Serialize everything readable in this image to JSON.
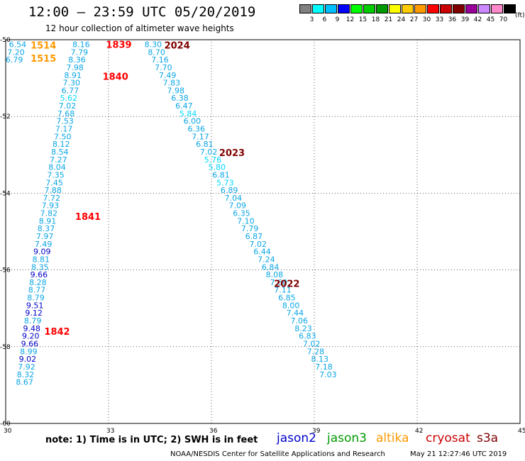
{
  "header": {
    "title": "12:00 – 23:59 UTC 05/20/2019",
    "subtitle": "12 hour collection of altimeter wave heights"
  },
  "legend": {
    "unit": "(ft)",
    "bins": [
      {
        "label": "3",
        "color": "#808080"
      },
      {
        "label": "6",
        "color": "#00ffff"
      },
      {
        "label": "9",
        "color": "#00bfff"
      },
      {
        "label": "12",
        "color": "#0000ff"
      },
      {
        "label": "15",
        "color": "#00ff00"
      },
      {
        "label": "18",
        "color": "#00cc00"
      },
      {
        "label": "21",
        "color": "#009900"
      },
      {
        "label": "24",
        "color": "#ffff00"
      },
      {
        "label": "27",
        "color": "#ffcc00"
      },
      {
        "label": "30",
        "color": "#ff9900"
      },
      {
        "label": "33",
        "color": "#ff0000"
      },
      {
        "label": "36",
        "color": "#cc0000"
      },
      {
        "label": "39",
        "color": "#800000"
      },
      {
        "label": "42",
        "color": "#990099"
      },
      {
        "label": "45",
        "color": "#cc88ff"
      },
      {
        "label": "70",
        "color": "#ff88cc"
      },
      {
        "label": "",
        "color": "#000000"
      }
    ]
  },
  "footer": {
    "note": "note:  1) Time is in UTC;  2) SWH is in feet",
    "satellites": [
      {
        "name": "jason2",
        "color": "#0000cc"
      },
      {
        "name": "jason3",
        "color": "#009900"
      },
      {
        "name": "altika",
        "color": "#ff9900"
      },
      {
        "name": "cryosat",
        "color": "#cc0000"
      },
      {
        "name": "s3a",
        "color": "#800000"
      }
    ],
    "credit": "NOAA/NESDIS Center for Satellite Applications and Research",
    "timestamp": "May 21 12:27:46 UTC 2019"
  },
  "chart_data": {
    "type": "scatter",
    "title": "12:00 – 23:59 UTC 05/20/2019",
    "subtitle": "12 hour collection of altimeter wave heights",
    "xlim": [
      30,
      45
    ],
    "ylim": [
      -60,
      -50
    ],
    "xticks": [
      30,
      33,
      36,
      39,
      42,
      45
    ],
    "yticks": [
      -50,
      -52,
      -54,
      -56,
      -58,
      -60
    ],
    "grid": true,
    "colors": {
      "lt6": "#00bfff",
      "lt9": "#1e90ff",
      "ge9": "#0000ff"
    },
    "series": [
      {
        "name": "altika",
        "color": "#ff9900",
        "values": [
          {
            "x": 30.35,
            "y": -50.12,
            "label": "6.54"
          },
          {
            "x": 30.3,
            "y": -50.32,
            "label": "7.20"
          },
          {
            "x": 30.25,
            "y": -50.52,
            "label": "6.79"
          }
        ]
      },
      {
        "name": "jason2",
        "color": "#00bfff",
        "values": [
          {
            "x": 32.2,
            "y": -50.12,
            "label": "8.16"
          },
          {
            "x": 32.15,
            "y": -50.32,
            "label": "7.79"
          },
          {
            "x": 32.08,
            "y": -50.52,
            "label": "8.36"
          },
          {
            "x": 32.02,
            "y": -50.72,
            "label": "7.98"
          },
          {
            "x": 31.96,
            "y": -50.92,
            "label": "8.91"
          },
          {
            "x": 31.92,
            "y": -51.12,
            "label": "7.30"
          },
          {
            "x": 31.88,
            "y": -51.32,
            "label": "6.77"
          },
          {
            "x": 31.84,
            "y": -51.52,
            "label": "5.62"
          },
          {
            "x": 31.8,
            "y": -51.72,
            "label": "7.02"
          },
          {
            "x": 31.76,
            "y": -51.92,
            "label": "7.68"
          },
          {
            "x": 31.73,
            "y": -52.12,
            "label": "7.53"
          },
          {
            "x": 31.7,
            "y": -52.32,
            "label": "7.17"
          },
          {
            "x": 31.66,
            "y": -52.52,
            "label": "7.50"
          },
          {
            "x": 31.62,
            "y": -52.72,
            "label": "8.12"
          },
          {
            "x": 31.58,
            "y": -52.92,
            "label": "8.54"
          },
          {
            "x": 31.54,
            "y": -53.12,
            "label": "7.27"
          },
          {
            "x": 31.5,
            "y": -53.32,
            "label": "8.04"
          },
          {
            "x": 31.46,
            "y": -53.52,
            "label": "7.35"
          },
          {
            "x": 31.42,
            "y": -53.72,
            "label": "7.45"
          },
          {
            "x": 31.38,
            "y": -53.92,
            "label": "7.88"
          },
          {
            "x": 31.34,
            "y": -54.12,
            "label": "7.72"
          },
          {
            "x": 31.3,
            "y": -54.32,
            "label": "7.93"
          },
          {
            "x": 31.26,
            "y": -54.52,
            "label": "7.82"
          },
          {
            "x": 31.22,
            "y": -54.72,
            "label": "8.91"
          },
          {
            "x": 31.18,
            "y": -54.92,
            "label": "8.37"
          },
          {
            "x": 31.14,
            "y": -55.12,
            "label": "7.97"
          },
          {
            "x": 31.1,
            "y": -55.32,
            "label": "7.49"
          },
          {
            "x": 31.06,
            "y": -55.52,
            "label": "9.09"
          },
          {
            "x": 31.03,
            "y": -55.72,
            "label": "8.81"
          },
          {
            "x": 31.0,
            "y": -55.92,
            "label": "8.35"
          },
          {
            "x": 30.97,
            "y": -56.12,
            "label": "9.66"
          },
          {
            "x": 30.94,
            "y": -56.32,
            "label": "8.28"
          },
          {
            "x": 30.91,
            "y": -56.52,
            "label": "8.77"
          },
          {
            "x": 30.88,
            "y": -56.72,
            "label": "8.79"
          },
          {
            "x": 30.85,
            "y": -56.92,
            "label": "9.51"
          },
          {
            "x": 30.82,
            "y": -57.12,
            "label": "9.12"
          },
          {
            "x": 30.79,
            "y": -57.32,
            "label": "8.79"
          },
          {
            "x": 30.76,
            "y": -57.52,
            "label": "9.48"
          },
          {
            "x": 30.73,
            "y": -57.72,
            "label": "9.20"
          },
          {
            "x": 30.7,
            "y": -57.92,
            "label": "9.66"
          },
          {
            "x": 30.67,
            "y": -58.12,
            "label": "8.99"
          },
          {
            "x": 30.64,
            "y": -58.32,
            "label": "9.02"
          },
          {
            "x": 30.61,
            "y": -58.52,
            "label": "7.92"
          },
          {
            "x": 30.58,
            "y": -58.72,
            "label": "8.32"
          },
          {
            "x": 30.55,
            "y": -58.92,
            "label": "8.67"
          }
        ]
      },
      {
        "name": "jason3",
        "color": "#00bfff",
        "values": [
          {
            "x": 34.3,
            "y": -50.12,
            "label": "8.30"
          },
          {
            "x": 34.4,
            "y": -50.32,
            "label": "8.70"
          },
          {
            "x": 34.5,
            "y": -50.52,
            "label": "7.16"
          },
          {
            "x": 34.6,
            "y": -50.72,
            "label": "7.70"
          },
          {
            "x": 34.72,
            "y": -50.92,
            "label": "7.49"
          },
          {
            "x": 34.84,
            "y": -51.12,
            "label": "7.83"
          },
          {
            "x": 34.96,
            "y": -51.32,
            "label": "7.98"
          },
          {
            "x": 35.08,
            "y": -51.52,
            "label": "6.38"
          },
          {
            "x": 35.2,
            "y": -51.72,
            "label": "6.47"
          },
          {
            "x": 35.32,
            "y": -51.92,
            "label": "5.84"
          },
          {
            "x": 35.44,
            "y": -52.12,
            "label": "6.00"
          },
          {
            "x": 35.56,
            "y": -52.32,
            "label": "6.36"
          },
          {
            "x": 35.68,
            "y": -52.52,
            "label": "7.17"
          },
          {
            "x": 35.8,
            "y": -52.72,
            "label": "6.81"
          },
          {
            "x": 35.92,
            "y": -52.92,
            "label": "7.02"
          },
          {
            "x": 36.04,
            "y": -53.12,
            "label": "5.76"
          },
          {
            "x": 36.16,
            "y": -53.32,
            "label": "5.80"
          },
          {
            "x": 36.28,
            "y": -53.52,
            "label": "6.81"
          },
          {
            "x": 36.4,
            "y": -53.72,
            "label": "5.73"
          },
          {
            "x": 36.52,
            "y": -53.92,
            "label": "6.89"
          },
          {
            "x": 36.64,
            "y": -54.12,
            "label": "7.04"
          },
          {
            "x": 36.76,
            "y": -54.32,
            "label": "7.09"
          },
          {
            "x": 36.88,
            "y": -54.52,
            "label": "6.35"
          },
          {
            "x": 37.0,
            "y": -54.72,
            "label": "7.10"
          },
          {
            "x": 37.12,
            "y": -54.92,
            "label": "7.79"
          },
          {
            "x": 37.24,
            "y": -55.12,
            "label": "6.87"
          },
          {
            "x": 37.36,
            "y": -55.32,
            "label": "7.02"
          },
          {
            "x": 37.48,
            "y": -55.52,
            "label": "6.44"
          },
          {
            "x": 37.6,
            "y": -55.72,
            "label": "7.24"
          },
          {
            "x": 37.72,
            "y": -55.92,
            "label": "6.84"
          },
          {
            "x": 37.84,
            "y": -56.12,
            "label": "8.08"
          },
          {
            "x": 37.96,
            "y": -56.32,
            "label": "7.60"
          },
          {
            "x": 38.08,
            "y": -56.52,
            "label": "7.11"
          },
          {
            "x": 38.2,
            "y": -56.72,
            "label": "6.85"
          },
          {
            "x": 38.32,
            "y": -56.92,
            "label": "8.00"
          },
          {
            "x": 38.44,
            "y": -57.12,
            "label": "7.44"
          },
          {
            "x": 38.56,
            "y": -57.32,
            "label": "7.06"
          },
          {
            "x": 38.68,
            "y": -57.52,
            "label": "8.23"
          },
          {
            "x": 38.8,
            "y": -57.72,
            "label": "6.83"
          },
          {
            "x": 38.92,
            "y": -57.92,
            "label": "7.02"
          },
          {
            "x": 39.04,
            "y": -58.12,
            "label": "7.28"
          },
          {
            "x": 39.16,
            "y": -58.32,
            "label": "8.13"
          },
          {
            "x": 39.28,
            "y": -58.52,
            "label": "7.18"
          },
          {
            "x": 39.4,
            "y": -58.72,
            "label": "7.03"
          }
        ]
      }
    ],
    "annotations": [
      {
        "text": "1514",
        "x": 31.1,
        "y": -50.14,
        "color": "#ff9900"
      },
      {
        "text": "1515",
        "x": 31.1,
        "y": -50.48,
        "color": "#ff9900"
      },
      {
        "text": "1839",
        "x": 33.3,
        "y": -50.12,
        "color": "#ff0000"
      },
      {
        "text": "1840",
        "x": 33.2,
        "y": -50.95,
        "color": "#ff0000"
      },
      {
        "text": "1841",
        "x": 32.4,
        "y": -54.6,
        "color": "#ff0000"
      },
      {
        "text": "1842",
        "x": 31.5,
        "y": -57.6,
        "color": "#ff0000"
      },
      {
        "text": "2024",
        "x": 35.0,
        "y": -50.14,
        "color": "#800000"
      },
      {
        "text": "2023",
        "x": 36.6,
        "y": -52.94,
        "color": "#800000"
      },
      {
        "text": "2022",
        "x": 38.2,
        "y": -56.35,
        "color": "#800000"
      }
    ]
  }
}
